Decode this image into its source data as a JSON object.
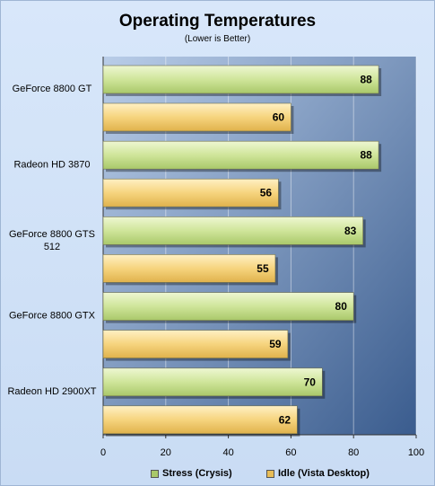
{
  "chart_data": {
    "type": "bar",
    "orientation": "horizontal",
    "title": "Operating Temperatures",
    "subtitle": "(Lower is Better)",
    "categories": [
      "GeForce 8800 GT",
      "Radeon HD 3870",
      "GeForce 8800 GTS 512",
      "GeForce 8800 GTX",
      "Radeon HD 2900XT"
    ],
    "series": [
      {
        "name": "Stress (Crysis)",
        "values": [
          88,
          88,
          83,
          80,
          70
        ],
        "color": "#cfe59a"
      },
      {
        "name": "Idle (Vista Desktop)",
        "values": [
          60,
          56,
          55,
          59,
          62
        ],
        "color": "#f6d47e"
      }
    ],
    "xlim": [
      0,
      100
    ],
    "xticks": [
      0,
      20,
      40,
      60,
      80,
      100
    ],
    "grid": true,
    "legend": "bottom",
    "plot_background": [
      "#b4c9e6",
      "#3c5f90"
    ]
  }
}
